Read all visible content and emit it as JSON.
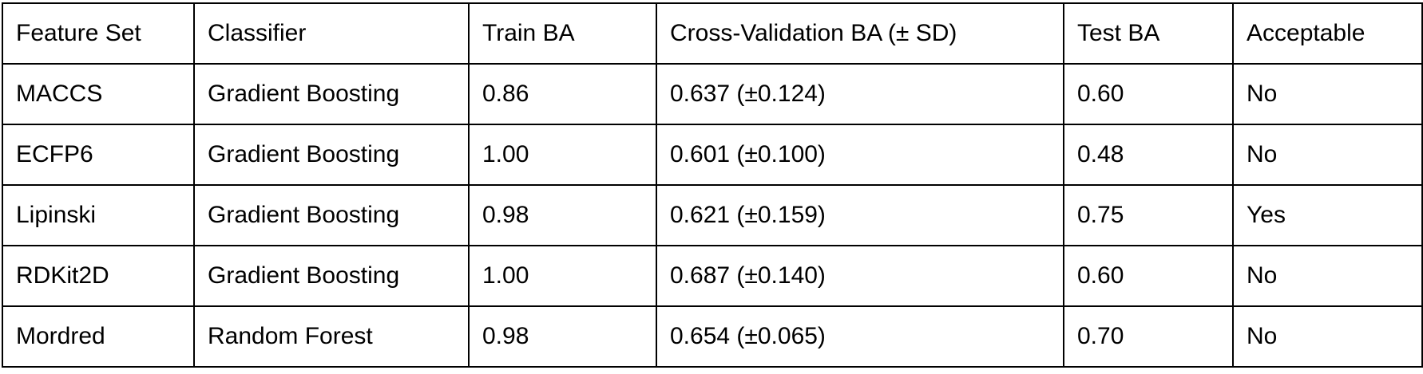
{
  "table": {
    "headers": [
      "Feature Set",
      "Classifier",
      "Train BA",
      "Cross-Validation BA (± SD)",
      "Test BA",
      "Acceptable"
    ],
    "rows": [
      [
        "MACCS",
        "Gradient Boosting",
        "0.86",
        "0.637 (±0.124)",
        "0.60",
        "No"
      ],
      [
        "ECFP6",
        "Gradient Boosting",
        "1.00",
        "0.601 (±0.100)",
        "0.48",
        "No"
      ],
      [
        "Lipinski",
        "Gradient Boosting",
        "0.98",
        "0.621 (±0.159)",
        "0.75",
        "Yes"
      ],
      [
        "RDKit2D",
        "Gradient Boosting",
        "1.00",
        "0.687 (±0.140)",
        "0.60",
        "No"
      ],
      [
        "Mordred",
        "Random Forest",
        "0.98",
        "0.654 (±0.065)",
        "0.70",
        "No"
      ]
    ]
  }
}
